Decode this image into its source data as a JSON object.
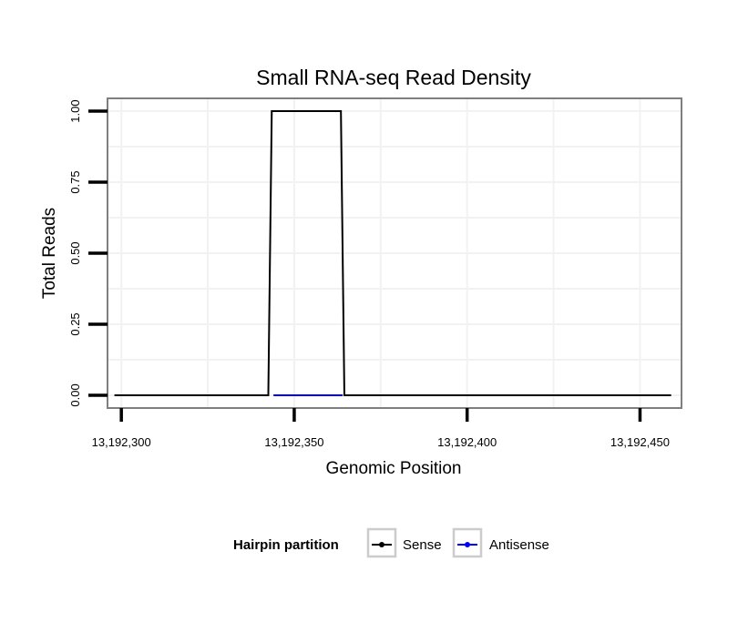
{
  "chart_data": {
    "type": "line",
    "title": "Small RNA-seq Read Density",
    "xlabel": "Genomic Position",
    "ylabel": "Total Reads",
    "xlim": [
      13192296,
      13192462
    ],
    "ylim": [
      -0.045,
      1.045
    ],
    "x_ticks": [
      13192300,
      13192350,
      13192400,
      13192450
    ],
    "x_tick_labels": [
      "13,192,300",
      "13,192,350",
      "13,192,400",
      "13,192,450"
    ],
    "y_ticks": [
      0,
      0.25,
      0.5,
      0.75,
      1
    ],
    "y_tick_labels": [
      "0.00",
      "0.25",
      "0.50",
      "0.75",
      "1.00"
    ],
    "grid": true,
    "series": [
      {
        "name": "Sense",
        "color": "#000000",
        "x": [
          13192298,
          13192342.5,
          13192343.5,
          13192363.5,
          13192364.5,
          13192459
        ],
        "y": [
          0,
          0,
          1,
          1,
          0,
          0
        ]
      },
      {
        "name": "Antisense",
        "color": "#0000ff",
        "x": [
          13192344,
          13192364
        ],
        "y": [
          0,
          0
        ]
      }
    ],
    "legend": {
      "title": "Hairpin partition",
      "position": "bottom",
      "entries": [
        "Sense",
        "Antisense"
      ]
    }
  }
}
